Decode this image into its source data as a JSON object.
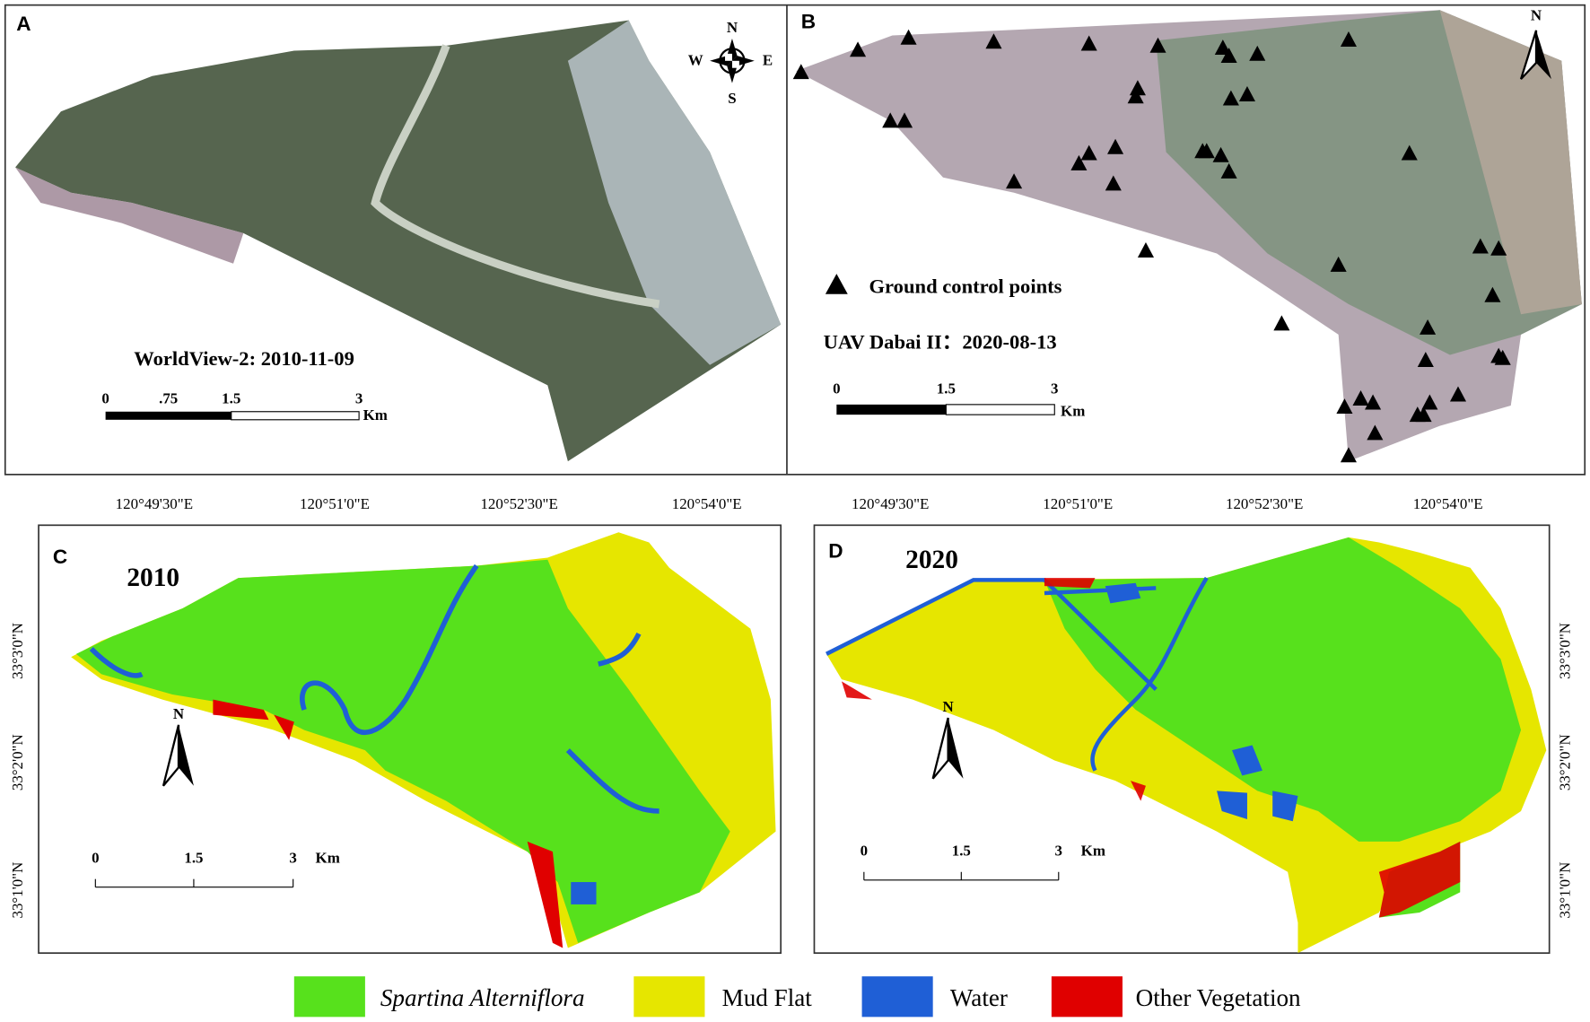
{
  "panels": [
    {
      "label": "A",
      "caption": "WorldView-2: 2010-11-09",
      "scale": [
        "0",
        ".75",
        "1.5",
        "3"
      ],
      "unit": "Km",
      "compass": [
        "N",
        "W",
        "E",
        "S"
      ]
    },
    {
      "label": "B",
      "legend": "Ground control points",
      "caption": "UAV Dabai II：2020-08-13",
      "scale": [
        "0",
        "1.5",
        "3"
      ],
      "unit": "Km",
      "north": "N"
    },
    {
      "label": "C",
      "year": "2010",
      "lon": [
        "120°49'30\"E",
        "120°51'0\"E",
        "120°52'30\"E",
        "120°54'0\"E"
      ],
      "lat": [
        "33°3'0\"N",
        "33°2'0\"N",
        "33°1'0\"N"
      ],
      "scale": [
        "0",
        "1.5",
        "3"
      ],
      "unit": "Km",
      "north": "N"
    },
    {
      "label": "D",
      "year": "2020",
      "lon": [
        "120°49'30\"E",
        "120°51'0\"E",
        "120°52'30\"E",
        "120°54'0\"E"
      ],
      "lat": [
        "33°3'0\"N",
        "33°2'0\"N",
        "33°1'0\"N"
      ],
      "scale": [
        "0",
        "1.5",
        "3"
      ],
      "unit": "Km",
      "north": "N"
    }
  ],
  "legend": [
    {
      "label": "Spartina Alterniflora",
      "color": "#57e11c"
    },
    {
      "label": "Mud Flat",
      "color": "#e6e600"
    },
    {
      "label": "Water",
      "color": "#1f5fd6"
    },
    {
      "label": "Other Vegetation",
      "color": "#e00000"
    }
  ]
}
